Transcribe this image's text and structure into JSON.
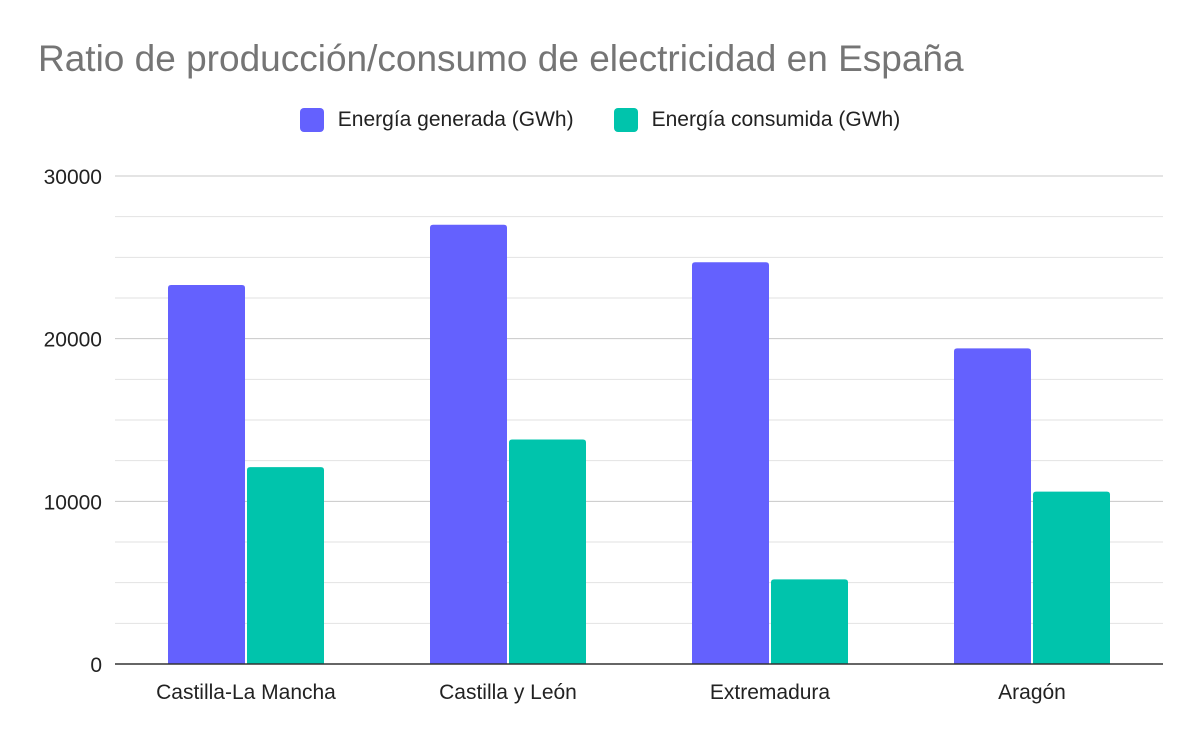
{
  "chart_data": {
    "type": "bar",
    "title": "Ratio de producción/consumo de electricidad en España",
    "categories": [
      "Castilla-La Mancha",
      "Castilla y León",
      "Extremadura",
      "Aragón"
    ],
    "series": [
      {
        "name": "Energía generada (GWh)",
        "color": "#6461fe",
        "values": [
          23300,
          27000,
          24700,
          19400
        ]
      },
      {
        "name": "Energía consumida (GWh)",
        "color": "#00c4ac",
        "values": [
          12100,
          13800,
          5200,
          10600
        ]
      }
    ],
    "ylim": [
      0,
      30000
    ],
    "yticks": [
      "0",
      "10000",
      "20000",
      "30000"
    ],
    "grid": true,
    "legend_position": "top",
    "xlabel": "",
    "ylabel": ""
  }
}
